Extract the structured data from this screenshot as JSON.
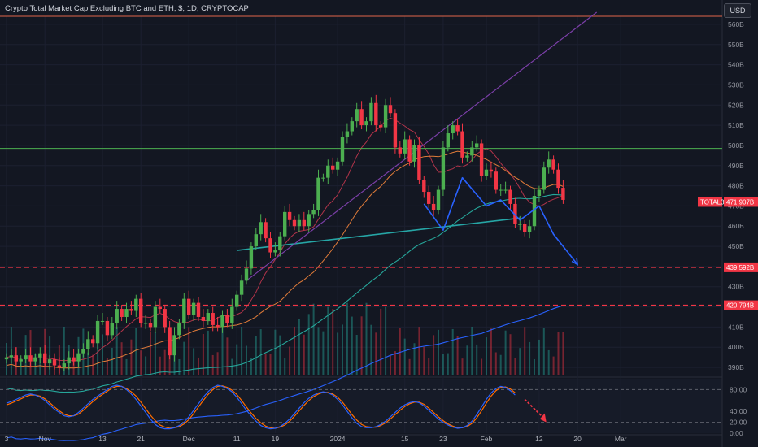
{
  "header": {
    "title": "Crypto Total Market Cap Excluding BTC and ETH, $, 1D, CRYPTOCAP",
    "currency": "USD"
  },
  "price_tag": {
    "symbol": "TOTAL3",
    "value": "471.907B"
  },
  "levels": [
    {
      "label": "439.592B",
      "value": 439.6
    },
    {
      "label": "420.794B",
      "value": 420.8
    }
  ],
  "colors": {
    "background": "#131722",
    "up": "#26a69a",
    "up_candle": "#4caf50",
    "down": "#f23645",
    "line_green": "#4caf50",
    "line_red": "#f23645",
    "pattern": "#2962ff",
    "osc_k": "#2962ff",
    "osc_d": "#ff6d00"
  },
  "chart_data": {
    "type": "candlestick",
    "title": "Crypto Total Market Cap Excluding BTC and ETH, $, 1D, CRYPTOCAP",
    "y_unit": "B USD",
    "ylim": [
      386,
      564
    ],
    "y_ticks": [
      390,
      400,
      410,
      420,
      430,
      440,
      450,
      460,
      470,
      480,
      490,
      500,
      510,
      520,
      530,
      540,
      550,
      560
    ],
    "y_tick_labels": [
      "390B",
      "400B",
      "410B",
      "420B",
      "430B",
      "440B",
      "450B",
      "460B",
      "470B",
      "480B",
      "490B",
      "500B",
      "510B",
      "520B",
      "530B",
      "540B",
      "550B",
      "560B"
    ],
    "x_ticks": [
      {
        "label": "3",
        "day": 0
      },
      {
        "label": "Nov",
        "day": 8
      },
      {
        "label": "13",
        "day": 20
      },
      {
        "label": "21",
        "day": 28
      },
      {
        "label": "Dec",
        "day": 38
      },
      {
        "label": "11",
        "day": 48
      },
      {
        "label": "19",
        "day": 56
      },
      {
        "label": "2024",
        "day": 69
      },
      {
        "label": "15",
        "day": 83
      },
      {
        "label": "23",
        "day": 91
      },
      {
        "label": "Feb",
        "day": 100
      },
      {
        "label": "12",
        "day": 111
      },
      {
        "label": "20",
        "day": 119
      },
      {
        "label": "Mar",
        "day": 128
      }
    ],
    "closes": [
      395,
      396,
      393,
      394,
      396,
      393,
      395,
      397,
      392,
      394,
      391,
      390,
      392,
      395,
      393,
      397,
      399,
      404,
      402,
      413,
      413,
      406,
      412,
      419,
      415,
      419,
      418,
      424,
      412,
      412,
      410,
      420,
      419,
      410,
      396,
      406,
      412,
      424,
      416,
      422,
      415,
      413,
      417,
      411,
      410,
      416,
      412,
      420,
      426,
      433,
      439,
      450,
      456,
      462,
      454,
      447,
      448,
      455,
      467,
      463,
      460,
      463,
      460,
      466,
      468,
      484,
      484,
      490,
      488,
      492,
      504,
      507,
      512,
      518,
      510,
      512,
      521,
      510,
      509,
      520,
      516,
      499,
      496,
      503,
      492,
      500,
      483,
      477,
      471,
      468,
      478,
      499,
      506,
      510,
      507,
      494,
      495,
      499,
      501,
      485,
      488,
      487,
      478,
      478,
      478,
      471,
      461,
      461,
      457,
      460,
      475,
      478,
      489,
      493,
      488,
      479,
      473
    ],
    "support_line": {
      "from": {
        "day": 48,
        "value": 448
      },
      "to": {
        "day": 107,
        "value": 464
      }
    },
    "resistance_line": {
      "from": {
        "day": 50,
        "value": 433
      },
      "to": {
        "day": 123,
        "value": 566
      }
    },
    "horizontal_lines": [
      {
        "value": 498.5
      },
      {
        "value": 564
      }
    ],
    "projection_path": [
      {
        "day": 87,
        "value": 471
      },
      {
        "day": 91,
        "value": 458
      },
      {
        "day": 95,
        "value": 484
      },
      {
        "day": 100,
        "value": 470
      },
      {
        "day": 103,
        "value": 473
      },
      {
        "day": 107,
        "value": 463
      },
      {
        "day": 111,
        "value": 470
      },
      {
        "day": 114,
        "value": 456
      },
      {
        "day": 119,
        "value": 441
      }
    ],
    "volume_max": 100,
    "oscillator": {
      "name": "Stochastic RSI",
      "levels": [
        80,
        50,
        20
      ],
      "tick_labels": [
        "80.00",
        "40.00",
        "20.00",
        "0.00"
      ],
      "tick_values": [
        80,
        40,
        20,
        0
      ],
      "k": [
        55,
        58,
        62,
        66,
        70,
        72,
        70,
        66,
        60,
        52,
        44,
        38,
        32,
        30,
        32,
        38,
        46,
        54,
        62,
        68,
        74,
        80,
        86,
        88,
        86,
        80,
        72,
        62,
        50,
        38,
        26,
        16,
        10,
        8,
        8,
        10,
        14,
        20,
        30,
        42,
        54,
        66,
        76,
        84,
        88,
        86,
        82,
        76,
        66,
        54,
        42,
        32,
        22,
        14,
        10,
        8,
        9,
        12,
        18,
        26,
        36,
        46,
        56,
        64,
        70,
        74,
        76,
        74,
        70,
        62,
        52,
        40,
        28,
        18,
        12,
        10,
        10,
        12,
        16,
        22,
        30,
        38,
        46,
        52,
        56,
        58,
        56,
        50,
        42,
        34,
        26,
        20,
        15,
        11,
        9,
        10,
        14,
        22,
        34,
        48,
        62,
        74,
        82,
        86,
        84,
        78,
        70
      ],
      "d": [
        52,
        55,
        59,
        63,
        67,
        70,
        70,
        68,
        63,
        56,
        48,
        41,
        35,
        32,
        32,
        35,
        42,
        50,
        58,
        65,
        71,
        77,
        83,
        86,
        86,
        82,
        76,
        68,
        57,
        45,
        33,
        23,
        15,
        11,
        9,
        10,
        12,
        17,
        25,
        36,
        48,
        60,
        71,
        80,
        86,
        87,
        84,
        79,
        71,
        60,
        48,
        37,
        27,
        19,
        13,
        10,
        9,
        11,
        15,
        22,
        31,
        41,
        51,
        60,
        67,
        72,
        75,
        75,
        72,
        66,
        57,
        46,
        34,
        24,
        16,
        12,
        11,
        11,
        14,
        19,
        26,
        34,
        42,
        49,
        54,
        57,
        57,
        53,
        46,
        38,
        30,
        23,
        17,
        13,
        10,
        10,
        12,
        18,
        28,
        41,
        55,
        68,
        78,
        84,
        85,
        81,
        74
      ]
    }
  }
}
